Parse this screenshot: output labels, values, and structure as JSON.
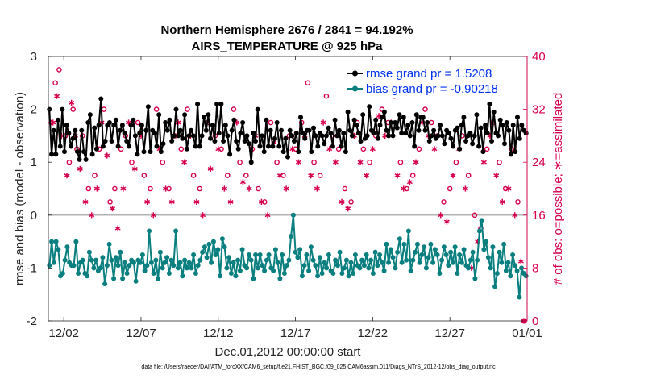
{
  "chart_data": {
    "type": "line",
    "title_line1": "Northern Hemisphere 2676 / 2841 = 94.192%",
    "title_line2": "AIRS_TEMPERATURE @ 925 hPa",
    "xlabel": "Dec.01,2012 00:00:00 start",
    "ylabel_left": "rmse and bias (model - observation)",
    "ylabel_right": "# of obs: o=possible; ∗=assimilated",
    "footnote": "data file: /Users/raeder/DAI/ATM_forcXX/CAM6_setup/f.e21.FHIST_BGC.f09_025.CAM6assim.011/Diags_NTrS_2012-12/obs_diag_output.nc",
    "xlim": [
      0,
      31
    ],
    "ylim_left": [
      -2,
      3
    ],
    "ylim_right": [
      0,
      40
    ],
    "x_ticks": [
      1,
      6,
      11,
      16,
      21,
      26,
      31
    ],
    "x_tick_labels": [
      "12/02",
      "12/07",
      "12/12",
      "12/17",
      "12/22",
      "12/27",
      "01/01"
    ],
    "y_ticks_left": [
      "-2",
      "-1",
      "0",
      "1",
      "2",
      "3"
    ],
    "y_ticks_right": [
      "0",
      "8",
      "16",
      "24",
      "32",
      "40"
    ],
    "legend": {
      "rmse": "rmse grand pr = 1.5208",
      "bias": "bias grand pr = -0.90218"
    },
    "colors": {
      "rmse": "#000000",
      "bias": "#0a7f7f",
      "obs": "#d6004f",
      "zero_line": "#b3b3b3"
    },
    "series": [
      {
        "name": "rmse",
        "axis": "left",
        "values": [
          2.0,
          1.15,
          1.6,
          1.15,
          1.8,
          1.3,
          2.0,
          1.2,
          1.7,
          1.55,
          1.3,
          1.45,
          1.6,
          1.2,
          1.05,
          1.6,
          1.2,
          1.05,
          1.75,
          1.9,
          1.15,
          1.65,
          1.25,
          1.7,
          2.2,
          1.3,
          1.4,
          1.7,
          1.75,
          1.4,
          1.7,
          1.8,
          1.3,
          1.6,
          1.7,
          1.55,
          1.4,
          1.3,
          1.7,
          1.8,
          1.5,
          1.15,
          1.55,
          1.7,
          1.2,
          1.6,
          2.05,
          1.2,
          1.6,
          1.55,
          1.3,
          1.9,
          1.2,
          1.35,
          1.75,
          1.6,
          1.8,
          1.4,
          1.5,
          2.0,
          1.5,
          1.6,
          1.45,
          1.9,
          1.25,
          1.5,
          1.6,
          1.5,
          1.3,
          2.1,
          1.3,
          1.5,
          1.85,
          1.6,
          1.9,
          1.45,
          1.7,
          1.4,
          2.1,
          1.55,
          2.1,
          1.4,
          1.7,
          1.5,
          1.15,
          1.6,
          1.8,
          1.4,
          1.25,
          1.55,
          1.75,
          1.4,
          1.5,
          1.35,
          1.0,
          1.55,
          1.4,
          2.0,
          1.3,
          1.5,
          1.2,
          1.8,
          1.3,
          1.6,
          1.3,
          1.45,
          1.75,
          1.3,
          1.6,
          1.2,
          1.45,
          1.1,
          1.6,
          1.5,
          1.4,
          1.55,
          1.2,
          1.85,
          1.55,
          1.45,
          1.6,
          1.6,
          1.2,
          1.65,
          1.5,
          1.3,
          1.55,
          1.5,
          1.35,
          1.5,
          1.65,
          1.55,
          1.3,
          1.8,
          1.5,
          1.6,
          1.3,
          1.55,
          1.2,
          1.95,
          1.6,
          1.5,
          1.8,
          1.7,
          1.55,
          1.4,
          1.9,
          1.45,
          1.5,
          2.05,
          1.6,
          1.55,
          1.8,
          1.45,
          1.7,
          1.85,
          1.95,
          1.6,
          1.5,
          1.75,
          1.5,
          1.75,
          1.65,
          1.9,
          1.55,
          1.85,
          1.55,
          1.7,
          1.5,
          1.75,
          1.3,
          1.9,
          1.6,
          1.85,
          1.85,
          1.6,
          1.75,
          1.4,
          1.5,
          1.6,
          1.45,
          1.5,
          1.7,
          1.5,
          1.35,
          1.6,
          1.55,
          1.45,
          1.3,
          1.6,
          1.65,
          1.25,
          1.7,
          1.85,
          1.4,
          1.5,
          1.55,
          1.35,
          1.5,
          1.9,
          1.3,
          1.65,
          1.2,
          1.7,
          1.55,
          2.1,
          1.4,
          1.95,
          1.55,
          1.5,
          1.8,
          1.7,
          1.35,
          1.75,
          1.6,
          1.15,
          1.7,
          1.2,
          1.85,
          1.45,
          1.7,
          1.6,
          1.55
        ]
      },
      {
        "name": "bias",
        "axis": "left",
        "values": [
          -0.95,
          -0.5,
          -0.9,
          -0.5,
          -0.65,
          -1.15,
          -1.1,
          -0.85,
          -0.6,
          -0.9,
          -0.95,
          -0.95,
          -0.5,
          -1.1,
          -0.9,
          -0.85,
          -1.1,
          -1.15,
          -0.7,
          -0.85,
          -1.0,
          -0.85,
          -1.05,
          -1.0,
          -0.8,
          -1.3,
          -0.95,
          -0.55,
          -0.85,
          -1.2,
          -0.8,
          -0.95,
          -0.7,
          -1.2,
          -0.9,
          -1.1,
          -0.95,
          -0.85,
          -0.9,
          -1.25,
          -0.85,
          -0.9,
          -0.75,
          -1.05,
          -0.95,
          -0.3,
          -0.9,
          -1.1,
          -0.85,
          -1.2,
          -0.7,
          -1.0,
          -0.9,
          -0.8,
          -1.1,
          -0.85,
          -0.95,
          -0.3,
          -1.0,
          -0.9,
          -1.15,
          -0.85,
          -1.0,
          -0.9,
          -1.0,
          -0.75,
          -1.1,
          -0.95,
          -0.85,
          -0.7,
          -0.6,
          -0.8,
          -0.55,
          -0.9,
          -0.5,
          -0.75,
          -0.65,
          -1.15,
          -0.45,
          -0.6,
          -1.0,
          -0.8,
          -1.1,
          -0.9,
          -1.15,
          -0.85,
          -1.05,
          -0.65,
          -0.95,
          -1.0,
          -0.75,
          -0.85,
          -1.2,
          -0.75,
          -1.0,
          -0.75,
          -0.95,
          -1.05,
          -0.85,
          -0.75,
          -1.0,
          -1.05,
          -0.65,
          -0.9,
          -1.2,
          -0.75,
          -1.1,
          -0.95,
          -0.85,
          -0.4,
          0.0,
          -0.7,
          -0.8,
          -0.65,
          -1.15,
          -0.95,
          -0.75,
          -1.05,
          -0.6,
          -0.85,
          -0.95,
          -1.15,
          -0.8,
          -1.1,
          -0.9,
          -1.0,
          -0.75,
          -1.05,
          -1.1,
          -0.85,
          -0.95,
          -0.7,
          -1.1,
          -1.0,
          -0.85,
          -1.15,
          -0.9,
          -1.1,
          -0.75,
          -0.95,
          -1.0,
          -0.85,
          -0.95,
          -0.75,
          -1.0,
          -0.85,
          -1.1,
          -0.7,
          -0.95,
          -0.75,
          -0.9,
          -1.05,
          -0.55,
          -0.9,
          -0.65,
          -0.8,
          -1.0,
          -0.7,
          -0.45,
          -0.9,
          -0.55,
          -0.85,
          -0.3,
          -1.05,
          -0.85,
          -0.7,
          -0.55,
          -0.9,
          -0.75,
          -0.6,
          -1.0,
          -0.8,
          -0.55,
          -0.9,
          -0.65,
          -0.75,
          -1.1,
          -0.85,
          -0.6,
          -0.75,
          -0.95,
          -0.7,
          -0.9,
          -0.6,
          -1.1,
          -0.75,
          -0.9,
          -0.65,
          -0.95,
          -1.0,
          -0.85,
          -0.7,
          -1.2,
          -0.85,
          -0.3,
          -0.1,
          -0.65,
          -0.5,
          -0.8,
          -1.0,
          -0.6,
          -1.35,
          -1.1,
          -0.7,
          -0.9,
          -0.55,
          -1.05,
          -0.9,
          -1.15,
          -0.75,
          -0.95,
          -1.05,
          -1.55,
          -1.0,
          -1.1,
          -1.15
        ]
      },
      {
        "name": "obs_possible",
        "axis": "right",
        "x": [
          0.2,
          0.45,
          0.7,
          1.1,
          1.35,
          1.6,
          1.85,
          2.2,
          2.6,
          3.0,
          3.3,
          3.6,
          4.0,
          4.3,
          4.7,
          5.0,
          5.4,
          5.8,
          6.2,
          6.6,
          7.0,
          7.4,
          7.8,
          8.2,
          8.6,
          9.0,
          9.4,
          9.8,
          10.3,
          10.8,
          11.2,
          11.6,
          12.0,
          12.4,
          12.8,
          13.2,
          13.6,
          14.0,
          14.4,
          14.8,
          15.2,
          15.6,
          16.0,
          16.4,
          16.8,
          17.2,
          17.6,
          18.0,
          18.4,
          18.8,
          19.2,
          19.6,
          20.0,
          20.4,
          20.8,
          21.2,
          21.6,
          22.0,
          22.4,
          22.8,
          23.2,
          23.6,
          24.0,
          24.4,
          24.8,
          25.2,
          25.6,
          26.0,
          26.4,
          26.8,
          27.2,
          27.6,
          28.0,
          28.4,
          28.8,
          29.2,
          29.6,
          30.0,
          30.4,
          30.8
        ],
        "values": [
          30,
          36,
          38,
          28,
          24,
          32,
          26,
          28,
          20,
          22,
          26,
          32,
          18,
          20,
          26,
          28,
          24,
          30,
          22,
          20,
          32,
          24,
          20,
          28,
          26,
          32,
          22,
          20,
          30,
          28,
          26,
          22,
          32,
          24,
          22,
          26,
          20,
          18,
          30,
          24,
          22,
          28,
          26,
          30,
          36,
          24,
          22,
          34,
          28,
          26,
          20,
          18,
          30,
          26,
          24,
          28,
          32,
          30,
          34,
          24,
          20,
          22,
          26,
          32,
          30,
          28,
          18,
          20,
          24,
          28,
          22,
          16,
          14,
          26,
          30,
          24,
          20,
          26,
          18,
          0
        ]
      },
      {
        "name": "obs_assimilated",
        "axis": "right",
        "x": [
          0.3,
          0.55,
          0.85,
          1.2,
          1.5,
          1.75,
          2.05,
          2.4,
          2.8,
          3.15,
          3.45,
          3.8,
          4.15,
          4.5,
          4.85,
          5.2,
          5.6,
          6.0,
          6.4,
          6.8,
          7.2,
          7.6,
          8.0,
          8.4,
          8.8,
          9.2,
          9.6,
          10.0,
          10.5,
          11.0,
          11.4,
          11.8,
          12.2,
          12.6,
          13.0,
          13.4,
          13.8,
          14.2,
          14.6,
          15.0,
          15.4,
          15.8,
          16.2,
          16.6,
          17.0,
          17.4,
          17.8,
          18.2,
          18.6,
          19.0,
          19.4,
          19.8,
          20.2,
          20.6,
          21.0,
          21.4,
          21.8,
          22.2,
          22.6,
          23.0,
          23.4,
          23.8,
          24.2,
          24.6,
          25.0,
          25.4,
          25.8,
          26.2,
          26.6,
          27.0,
          27.4,
          27.8,
          28.2,
          28.6,
          29.0,
          29.4,
          29.8,
          30.2,
          30.6
        ],
        "values": [
          30,
          34,
          28,
          22,
          33,
          28,
          23,
          18,
          16,
          20,
          30,
          25,
          17,
          14,
          20,
          30,
          23,
          28,
          18,
          16,
          26,
          20,
          18,
          30,
          24,
          28,
          18,
          16,
          23,
          26,
          20,
          18,
          30,
          21,
          20,
          28,
          18,
          16,
          27,
          22,
          20,
          26,
          24,
          28,
          22,
          20,
          30,
          26,
          24,
          18,
          17,
          28,
          24,
          22,
          26,
          31,
          28,
          30,
          22,
          20,
          21,
          24,
          30,
          28,
          26,
          16,
          15,
          22,
          26,
          20,
          8,
          12,
          24,
          28,
          22,
          18,
          20,
          16,
          9
        ]
      }
    ]
  }
}
